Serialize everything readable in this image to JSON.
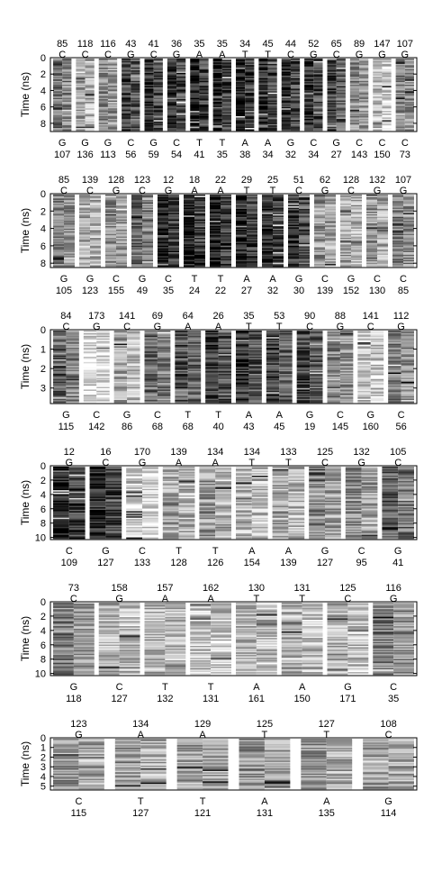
{
  "chart_data": [
    {
      "type": "heatmap",
      "ylabel": "Time (ns)",
      "yticks": [
        0,
        2,
        4,
        6,
        8
      ],
      "ylim": [
        0,
        9
      ],
      "top_strand": {
        "numbers": [
          "85",
          "118",
          "116",
          "43",
          "41",
          "36",
          "35",
          "35",
          "34",
          "45",
          "44",
          "52",
          "65",
          "89",
          "147",
          "107"
        ],
        "bases": [
          "C",
          "C",
          "C",
          "G",
          "C",
          "G",
          "A",
          "A",
          "T",
          "T",
          "C",
          "G",
          "C",
          "G",
          "G",
          "G"
        ]
      },
      "bottom_strand": {
        "bases": [
          "G",
          "G",
          "G",
          "C",
          "G",
          "C",
          "T",
          "T",
          "A",
          "A",
          "G",
          "C",
          "G",
          "C",
          "C",
          "C"
        ],
        "numbers": [
          "107",
          "136",
          "113",
          "56",
          "59",
          "54",
          "41",
          "35",
          "38",
          "34",
          "32",
          "34",
          "27",
          "143",
          "150",
          "73"
        ]
      }
    },
    {
      "type": "heatmap",
      "ylabel": "Time (ns)",
      "yticks": [
        0,
        2,
        4,
        6,
        8
      ],
      "ylim": [
        0,
        8.5
      ],
      "top_strand": {
        "numbers": [
          "85",
          "139",
          "128",
          "123",
          "12",
          "18",
          "22",
          "29",
          "25",
          "51",
          "62",
          "128",
          "132",
          "107"
        ],
        "bases": [
          "C",
          "C",
          "G",
          "C",
          "G",
          "A",
          "A",
          "T",
          "T",
          "C",
          "G",
          "C",
          "G",
          "G"
        ]
      },
      "bottom_strand": {
        "bases": [
          "G",
          "G",
          "C",
          "G",
          "C",
          "T",
          "T",
          "A",
          "A",
          "G",
          "C",
          "G",
          "C",
          "C"
        ],
        "numbers": [
          "105",
          "123",
          "155",
          "49",
          "35",
          "24",
          "22",
          "27",
          "32",
          "30",
          "139",
          "152",
          "130",
          "85"
        ]
      }
    },
    {
      "type": "heatmap",
      "ylabel": "Time (ns)",
      "yticks": [
        0,
        1,
        2,
        3
      ],
      "ylim": [
        0,
        3.8
      ],
      "top_strand": {
        "numbers": [
          "84",
          "173",
          "141",
          "69",
          "64",
          "26",
          "35",
          "53",
          "90",
          "88",
          "141",
          "112"
        ],
        "bases": [
          "C",
          "G",
          "C",
          "G",
          "A",
          "A",
          "T",
          "T",
          "C",
          "G",
          "C",
          "G"
        ]
      },
      "bottom_strand": {
        "bases": [
          "G",
          "C",
          "G",
          "C",
          "T",
          "T",
          "A",
          "A",
          "G",
          "C",
          "G",
          "C"
        ],
        "numbers": [
          "115",
          "142",
          "86",
          "68",
          "68",
          "40",
          "43",
          "45",
          "19",
          "145",
          "160",
          "56"
        ]
      }
    },
    {
      "type": "heatmap",
      "ylabel": "Time (ns)",
      "yticks": [
        0,
        2,
        4,
        6,
        8,
        10
      ],
      "ylim": [
        0,
        10.3
      ],
      "top_strand": {
        "numbers": [
          "12",
          "16",
          "170",
          "139",
          "134",
          "134",
          "133",
          "125",
          "132",
          "105"
        ],
        "bases": [
          "G",
          "C",
          "G",
          "A",
          "A",
          "T",
          "T",
          "C",
          "G",
          "C"
        ]
      },
      "bottom_strand": {
        "bases": [
          "C",
          "G",
          "C",
          "T",
          "T",
          "A",
          "A",
          "G",
          "C",
          "G"
        ],
        "numbers": [
          "109",
          "127",
          "133",
          "128",
          "126",
          "154",
          "139",
          "127",
          "95",
          "41"
        ]
      }
    },
    {
      "type": "heatmap",
      "ylabel": "Time (ns)",
      "yticks": [
        0,
        2,
        4,
        6,
        8,
        10
      ],
      "ylim": [
        0,
        10.3
      ],
      "top_strand": {
        "numbers": [
          "73",
          "158",
          "157",
          "162",
          "130",
          "131",
          "125",
          "116"
        ],
        "bases": [
          "C",
          "G",
          "A",
          "A",
          "T",
          "T",
          "C",
          "G"
        ]
      },
      "bottom_strand": {
        "bases": [
          "G",
          "C",
          "T",
          "T",
          "A",
          "A",
          "G",
          "C"
        ],
        "numbers": [
          "118",
          "127",
          "132",
          "131",
          "161",
          "150",
          "171",
          "35"
        ]
      }
    },
    {
      "type": "heatmap",
      "ylabel": "Time (ns)",
      "yticks": [
        0,
        1,
        2,
        3,
        4,
        5
      ],
      "ylim": [
        0,
        5.4
      ],
      "top_strand": {
        "numbers": [
          "123",
          "134",
          "129",
          "125",
          "127",
          "108"
        ],
        "bases": [
          "G",
          "A",
          "A",
          "T",
          "T",
          "C"
        ]
      },
      "bottom_strand": {
        "bases": [
          "C",
          "T",
          "T",
          "A",
          "A",
          "G"
        ],
        "numbers": [
          "115",
          "127",
          "121",
          "131",
          "135",
          "114"
        ]
      }
    }
  ]
}
